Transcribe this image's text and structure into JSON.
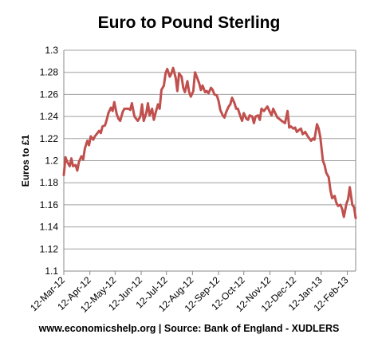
{
  "chart_data": {
    "type": "line",
    "title": "Euro to Pound Sterling",
    "xlabel": "",
    "ylabel": "Euros to £1",
    "ylim": [
      1.1,
      1.3
    ],
    "yticks": [
      "1.1",
      "1.12",
      "1.14",
      "1.16",
      "1.18",
      "1.2",
      "1.22",
      "1.24",
      "1.26",
      "1.28",
      "1.3"
    ],
    "xtick_labels": [
      "12-Mar-12",
      "12-Apr-12",
      "12-May-12",
      "12-Jun-12",
      "12-Jul-12",
      "12-Aug-12",
      "12-Sep-12",
      "12-Oct-12",
      "12-Nov-12",
      "12-Dec-12",
      "12-Jan-13",
      "12-Feb-13"
    ],
    "grid": "horizontal",
    "line_color": "#c0504d",
    "series": [
      {
        "dates": [
          "2012-03-12",
          "2012-03-14",
          "2012-03-16",
          "2012-03-19",
          "2012-03-21",
          "2012-03-23",
          "2012-03-26",
          "2012-03-28",
          "2012-03-30",
          "2012-04-02",
          "2012-04-04",
          "2012-04-06",
          "2012-04-09",
          "2012-04-11",
          "2012-04-13",
          "2012-04-16",
          "2012-04-18",
          "2012-04-20",
          "2012-04-23",
          "2012-04-25",
          "2012-04-27",
          "2012-04-30",
          "2012-05-02",
          "2012-05-04",
          "2012-05-07",
          "2012-05-09",
          "2012-05-11",
          "2012-05-14",
          "2012-05-16",
          "2012-05-18",
          "2012-05-21",
          "2012-05-23",
          "2012-05-25",
          "2012-05-28",
          "2012-05-30",
          "2012-06-01",
          "2012-06-04",
          "2012-06-06",
          "2012-06-08",
          "2012-06-11",
          "2012-06-13",
          "2012-06-15",
          "2012-06-18",
          "2012-06-20",
          "2012-06-22",
          "2012-06-25",
          "2012-06-27",
          "2012-06-29",
          "2012-07-02",
          "2012-07-04",
          "2012-07-06",
          "2012-07-09",
          "2012-07-11",
          "2012-07-13",
          "2012-07-16",
          "2012-07-18",
          "2012-07-20",
          "2012-07-23",
          "2012-07-25",
          "2012-07-27",
          "2012-07-30",
          "2012-08-01",
          "2012-08-03",
          "2012-08-06",
          "2012-08-08",
          "2012-08-10",
          "2012-08-13",
          "2012-08-15",
          "2012-08-17",
          "2012-08-20",
          "2012-08-22",
          "2012-08-24",
          "2012-08-27",
          "2012-08-29",
          "2012-08-31",
          "2012-09-03",
          "2012-09-05",
          "2012-09-07",
          "2012-09-10",
          "2012-09-12",
          "2012-09-14",
          "2012-09-17",
          "2012-09-19",
          "2012-09-21",
          "2012-09-24",
          "2012-09-26",
          "2012-09-28",
          "2012-10-01",
          "2012-10-03",
          "2012-10-05",
          "2012-10-08",
          "2012-10-10",
          "2012-10-12",
          "2012-10-15",
          "2012-10-17",
          "2012-10-19",
          "2012-10-22",
          "2012-10-24",
          "2012-10-26",
          "2012-10-29",
          "2012-10-31",
          "2012-11-02",
          "2012-11-05",
          "2012-11-07",
          "2012-11-09",
          "2012-11-12",
          "2012-11-14",
          "2012-11-16",
          "2012-11-19",
          "2012-11-21",
          "2012-11-23",
          "2012-11-26",
          "2012-11-28",
          "2012-11-30",
          "2012-12-03",
          "2012-12-05",
          "2012-12-07",
          "2012-12-10",
          "2012-12-12",
          "2012-12-14",
          "2012-12-17",
          "2012-12-19",
          "2012-12-21",
          "2012-12-24",
          "2012-12-27",
          "2012-12-31",
          "2013-01-02",
          "2013-01-04",
          "2013-01-07",
          "2013-01-09",
          "2013-01-11",
          "2013-01-14",
          "2013-01-16",
          "2013-01-18",
          "2013-01-21",
          "2013-01-23",
          "2013-01-25",
          "2013-01-28",
          "2013-01-30",
          "2013-02-01",
          "2013-02-04",
          "2013-02-06",
          "2013-02-08",
          "2013-02-11",
          "2013-02-13",
          "2013-02-15",
          "2013-02-18",
          "2013-02-20",
          "2013-02-22"
        ],
        "values": [
          1.187,
          1.203,
          1.199,
          1.195,
          1.202,
          1.195,
          1.196,
          1.191,
          1.199,
          1.204,
          1.201,
          1.211,
          1.218,
          1.214,
          1.222,
          1.219,
          1.222,
          1.224,
          1.227,
          1.225,
          1.231,
          1.232,
          1.237,
          1.243,
          1.248,
          1.245,
          1.253,
          1.242,
          1.238,
          1.236,
          1.244,
          1.247,
          1.247,
          1.247,
          1.246,
          1.252,
          1.24,
          1.238,
          1.236,
          1.24,
          1.251,
          1.236,
          1.243,
          1.252,
          1.241,
          1.247,
          1.237,
          1.243,
          1.251,
          1.247,
          1.264,
          1.268,
          1.279,
          1.283,
          1.276,
          1.279,
          1.284,
          1.275,
          1.263,
          1.279,
          1.276,
          1.266,
          1.262,
          1.272,
          1.262,
          1.258,
          1.263,
          1.28,
          1.276,
          1.27,
          1.264,
          1.268,
          1.262,
          1.263,
          1.261,
          1.266,
          1.264,
          1.26,
          1.259,
          1.254,
          1.246,
          1.241,
          1.239,
          1.244,
          1.249,
          1.251,
          1.257,
          1.252,
          1.247,
          1.247,
          1.24,
          1.236,
          1.243,
          1.238,
          1.237,
          1.241,
          1.24,
          1.234,
          1.24,
          1.241,
          1.237,
          1.247,
          1.245,
          1.247,
          1.249,
          1.244,
          1.241,
          1.247,
          1.242,
          1.239,
          1.238,
          1.236,
          1.235,
          1.234,
          1.245,
          1.23,
          1.231,
          1.229,
          1.23,
          1.226,
          1.228,
          1.229,
          1.224,
          1.226,
          1.222,
          1.218,
          1.22,
          1.219,
          1.233,
          1.229,
          1.221,
          1.2,
          1.196,
          1.189,
          1.185,
          1.173,
          1.166,
          1.168,
          1.162,
          1.159,
          1.16,
          1.156,
          1.149,
          1.161,
          1.165,
          1.176,
          1.16,
          1.158,
          1.148
        ]
      }
    ]
  },
  "source_text": "www.economicshelp.org | Source: Bank of England - XUDLERS"
}
